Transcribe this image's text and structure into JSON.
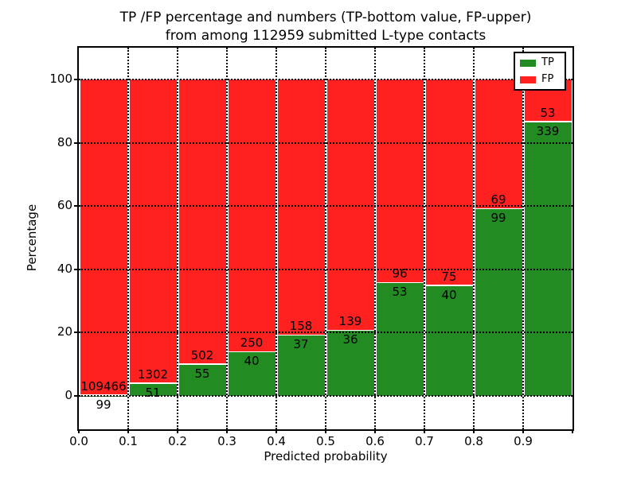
{
  "chart_data": {
    "type": "bar",
    "stacked": true,
    "title_lines": [
      "TP /FP percentage and numbers (TP-bottom value, FP-upper)",
      "from among 112959 submitted L-type contacts"
    ],
    "xlabel": "Predicted probability",
    "ylabel": "Percentage",
    "x_tick_labels": [
      "0.0",
      "0.1",
      "0.2",
      "0.3",
      "0.4",
      "0.5",
      "0.6",
      "0.7",
      "0.8",
      "0.9"
    ],
    "y_ticks": [
      0,
      20,
      40,
      60,
      80,
      100
    ],
    "xlim": [
      0.0,
      1.0
    ],
    "ylim": [
      -10.5,
      110
    ],
    "grid": true,
    "y_unit": "percent of bin total",
    "total_contacts": 112959,
    "categories": [
      "0.0-0.1",
      "0.1-0.2",
      "0.2-0.3",
      "0.3-0.4",
      "0.4-0.5",
      "0.5-0.6",
      "0.6-0.7",
      "0.7-0.8",
      "0.8-0.9",
      "0.9-1.0"
    ],
    "series": [
      {
        "name": "TP",
        "color": "#228b22",
        "counts": [
          99,
          51,
          55,
          40,
          37,
          36,
          53,
          40,
          99,
          339
        ]
      },
      {
        "name": "FP",
        "color": "#ff2020",
        "counts": [
          109466,
          1302,
          502,
          250,
          158,
          139,
          96,
          75,
          69,
          53
        ]
      }
    ],
    "legend": {
      "position": "upper right",
      "entries": [
        {
          "label": "TP",
          "color": "#228b22"
        },
        {
          "label": "FP",
          "color": "#ff2020"
        }
      ]
    }
  }
}
